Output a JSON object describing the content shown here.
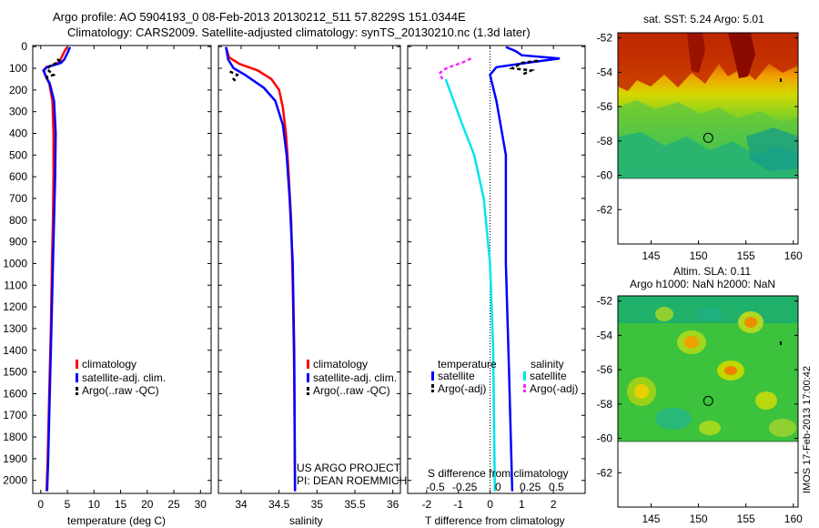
{
  "title_line1": "Argo profile: AO 5904193_0 08-Feb-2013 20130212_511 57.8229S 151.0344E",
  "title_line2": "Climatology: CARS2009. Satellite-adjusted climatology: synTS_20130210.nc (1.3d later)",
  "credit_line1": "US ARGO PROJECT",
  "credit_line2": "PI: DEAN ROEMMICH",
  "imos_stamp": "IMOS 17-Feb-2013 17:00:42",
  "colors": {
    "climatology": "#ff0000",
    "satellite": "#0000ff",
    "argo": "#000000",
    "cyan": "#00e5ee",
    "magenta": "#ff22ff"
  },
  "chart_data": [
    {
      "type": "line",
      "id": "temperature",
      "xlabel": "temperature (deg C)",
      "ylabel": "",
      "xlim": [
        -1.5,
        32
      ],
      "ylim": [
        2060,
        -5
      ],
      "xticks": [
        "0",
        "5",
        "10",
        "15",
        "20",
        "25",
        "30"
      ],
      "yticks": [
        "0",
        "100",
        "200",
        "300",
        "400",
        "500",
        "600",
        "700",
        "800",
        "900",
        "1000",
        "1100",
        "1200",
        "1300",
        "1400",
        "1500",
        "1600",
        "1700",
        "1800",
        "1900",
        "2000"
      ],
      "legend": [
        "climatology",
        "satellite-adj. clim.",
        "Argo(..raw -QC)"
      ],
      "series": [
        {
          "name": "climatology",
          "color": "#ff0000",
          "points": [
            [
              5,
              2
            ],
            [
              4.5,
              20
            ],
            [
              4.0,
              45
            ],
            [
              3.6,
              65
            ],
            [
              3.0,
              80
            ],
            [
              1.0,
              95
            ],
            [
              0.6,
              110
            ],
            [
              1.0,
              140
            ],
            [
              1.6,
              170
            ],
            [
              2.2,
              250
            ],
            [
              2.4,
              400
            ],
            [
              2.4,
              600
            ],
            [
              2.3,
              800
            ],
            [
              2.1,
              1000
            ],
            [
              1.9,
              1300
            ],
            [
              1.6,
              1600
            ],
            [
              1.3,
              1900
            ],
            [
              1.1,
              2050
            ]
          ]
        },
        {
          "name": "satellite-adj. clim.",
          "color": "#0000ff",
          "points": [
            [
              5.5,
              2
            ],
            [
              5.2,
              20
            ],
            [
              4.7,
              45
            ],
            [
              4.4,
              60
            ],
            [
              3.8,
              75
            ],
            [
              1.2,
              95
            ],
            [
              0.5,
              110
            ],
            [
              1.0,
              140
            ],
            [
              1.7,
              170
            ],
            [
              2.5,
              250
            ],
            [
              2.8,
              400
            ],
            [
              2.7,
              600
            ],
            [
              2.5,
              800
            ],
            [
              2.3,
              1000
            ],
            [
              2.0,
              1300
            ],
            [
              1.7,
              1600
            ],
            [
              1.4,
              1900
            ],
            [
              1.2,
              2050
            ]
          ]
        },
        {
          "name": "Argo(..raw -QC)",
          "color": "#000000",
          "points": [
            [
              3.1,
              58
            ],
            [
              3.5,
              65
            ],
            [
              3.0,
              75
            ],
            [
              1.7,
              90
            ],
            [
              1.2,
              105
            ],
            [
              2.4,
              130
            ],
            [
              1.2,
              140
            ],
            [
              1.1,
              160
            ]
          ]
        }
      ]
    },
    {
      "type": "line",
      "id": "salinity",
      "xlabel": "salinity",
      "ylabel": "",
      "xlim": [
        33.7,
        36.1
      ],
      "ylim": [
        2060,
        -5
      ],
      "xticks": [
        "34",
        "34.5",
        "35",
        "35.5",
        "36"
      ],
      "legend": [
        "climatology",
        "satellite-adj. clim.",
        "Argo(..raw -QC)"
      ],
      "series": [
        {
          "name": "climatology",
          "color": "#ff0000",
          "points": [
            [
              33.8,
              2
            ],
            [
              33.84,
              50
            ],
            [
              33.98,
              80
            ],
            [
              34.22,
              110
            ],
            [
              34.4,
              150
            ],
            [
              34.5,
              200
            ],
            [
              34.55,
              280
            ],
            [
              34.59,
              400
            ],
            [
              34.62,
              550
            ],
            [
              34.66,
              800
            ],
            [
              34.68,
              1100
            ],
            [
              34.7,
              1500
            ],
            [
              34.71,
              2050
            ]
          ]
        },
        {
          "name": "satellite-adj. clim.",
          "color": "#0000ff",
          "points": [
            [
              33.8,
              2
            ],
            [
              33.83,
              60
            ],
            [
              33.9,
              100
            ],
            [
              34.05,
              130
            ],
            [
              34.3,
              190
            ],
            [
              34.45,
              250
            ],
            [
              34.55,
              360
            ],
            [
              34.6,
              500
            ],
            [
              34.64,
              700
            ],
            [
              34.68,
              1000
            ],
            [
              34.7,
              1400
            ],
            [
              34.71,
              2050
            ]
          ]
        },
        {
          "name": "Argo(..raw -QC)",
          "color": "#000000",
          "points": [
            [
              33.85,
              115
            ],
            [
              33.95,
              130
            ],
            [
              33.9,
              150
            ],
            [
              33.93,
              160
            ]
          ]
        }
      ]
    },
    {
      "type": "line",
      "id": "difference",
      "xlabel": "T difference from climatology",
      "xlabel_top": "S difference from climatology",
      "ylabel": "",
      "xlim": [
        -2.6,
        3.0
      ],
      "ylim": [
        2060,
        -5
      ],
      "xticks": [
        "-2",
        "-1",
        "0",
        "1",
        "2"
      ],
      "xticks_top": [
        "-0.5",
        "-0.25",
        "0",
        "0.25",
        "0.5"
      ],
      "legend_title_left": "temperature",
      "legend_title_right": "salinity",
      "legend": [
        "satellite",
        "Argo(-adj)",
        "satellite",
        "Argo(-adj)"
      ],
      "series": [
        {
          "name": "temperature satellite",
          "color": "#0000ff",
          "points": [
            [
              0.5,
              2
            ],
            [
              0.8,
              20
            ],
            [
              1.0,
              40
            ],
            [
              2.2,
              55
            ],
            [
              1.4,
              70
            ],
            [
              0.2,
              95
            ],
            [
              0,
              130
            ],
            [
              0.2,
              250
            ],
            [
              0.5,
              500
            ],
            [
              0.5,
              1000
            ],
            [
              0.6,
              1500
            ],
            [
              0.7,
              2050
            ]
          ]
        },
        {
          "name": "salinity satellite",
          "color": "#00e5ee",
          "points": [
            [
              -1.4,
              150
            ],
            [
              -1.2,
              230
            ],
            [
              -0.9,
              350
            ],
            [
              -0.5,
              500
            ],
            [
              -0.2,
              700
            ],
            [
              0,
              1000
            ],
            [
              0.1,
              1400
            ],
            [
              0.15,
              2050
            ]
          ]
        },
        {
          "name": "temperature Argo(-adj)",
          "color": "#000000",
          "points": [
            [
              1.5,
              65
            ],
            [
              1.0,
              75
            ],
            [
              0.7,
              100
            ],
            [
              1.3,
              110
            ],
            [
              1.0,
              130
            ]
          ]
        },
        {
          "name": "salinity Argo(-adj)",
          "color": "#ff22ff",
          "points": [
            [
              -0.6,
              55
            ],
            [
              -0.9,
              75
            ],
            [
              -1.3,
              95
            ],
            [
              -1.5,
              110
            ],
            [
              -1.6,
              125
            ],
            [
              -1.5,
              150
            ]
          ]
        }
      ]
    },
    {
      "type": "heatmap",
      "id": "sst_map",
      "title": "sat. SST: 5.24  Argo: 5.01",
      "xlim": [
        141.5,
        160.5
      ],
      "ylim": [
        -64,
        -51.7
      ],
      "xticks": [
        "145",
        "150",
        "155",
        "160"
      ],
      "yticks": [
        "-52",
        "-54",
        "-56",
        "-58",
        "-60",
        "-62"
      ],
      "argo_position": [
        151.03,
        -57.82
      ]
    },
    {
      "type": "heatmap",
      "id": "sla_map",
      "title_line1": "Altim. SLA: 0.11",
      "title_line2": "Argo h1000: NaN h2000: NaN",
      "xlim": [
        141.5,
        160.5
      ],
      "ylim": [
        -64,
        -51.7
      ],
      "xticks": [
        "145",
        "150",
        "155",
        "160"
      ],
      "yticks": [
        "-52",
        "-54",
        "-56",
        "-58",
        "-60",
        "-62"
      ],
      "argo_position": [
        151.03,
        -57.82
      ]
    }
  ]
}
